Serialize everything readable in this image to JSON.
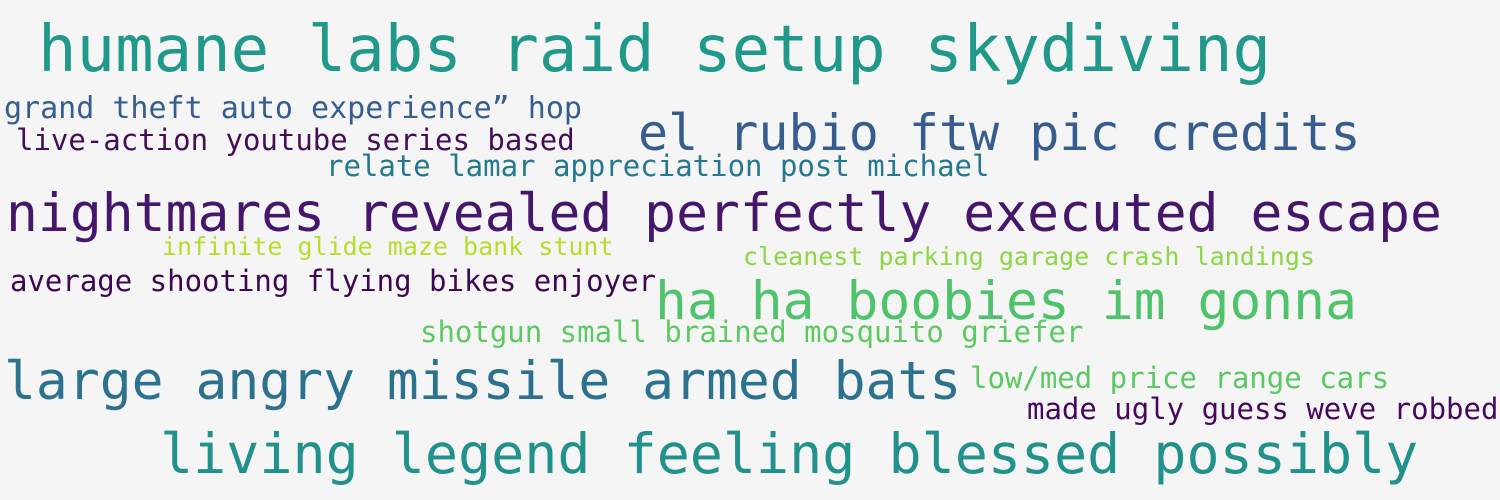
{
  "phrases": [
    {
      "text": "humane labs raid setup skydiving",
      "color": "#21998a"
    },
    {
      "text": "grand theft auto experience” hop",
      "color": "#365d8d"
    },
    {
      "text": "el rubio ftw pic credits",
      "color": "#365d8d"
    },
    {
      "text": "live-action youtube series based",
      "color": "#440e57"
    },
    {
      "text": "relate lamar appreciation post michael",
      "color": "#25788e"
    },
    {
      "text": "nightmares revealed perfectly executed escape",
      "color": "#46166b"
    },
    {
      "text": "infinite glide maze bank stunt",
      "color": "#b5de2c"
    },
    {
      "text": "cleanest parking garage crash landings",
      "color": "#8ed645"
    },
    {
      "text": "average shooting flying bikes enjoyer",
      "color": "#3e0751"
    },
    {
      "text": "ha ha boobies im gonna",
      "color": "#4ec36b"
    },
    {
      "text": "shotgun small brained mosquito griefer",
      "color": "#5ec962"
    },
    {
      "text": "large angry missile armed bats",
      "color": "#2c728e"
    },
    {
      "text": "low/med price range cars",
      "color": "#5cc863"
    },
    {
      "text": "made ugly guess weve robbed",
      "color": "#46085c"
    },
    {
      "text": "living legend feeling blessed possibly",
      "color": "#21918c"
    }
  ]
}
